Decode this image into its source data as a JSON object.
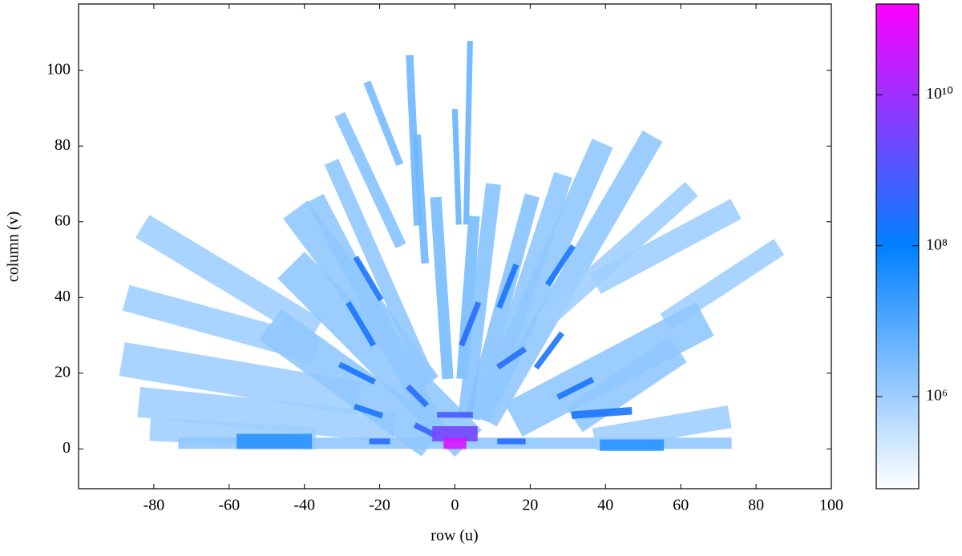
{
  "chart_data": {
    "type": "heatmap",
    "xlabel": "row (u)",
    "ylabel": "column (v)",
    "xlim": [
      -100,
      100
    ],
    "ylim": [
      -10.5,
      117.5
    ],
    "xticks": [
      -80,
      -60,
      -40,
      -20,
      0,
      20,
      40,
      60,
      80,
      100
    ],
    "yticks": [
      0,
      20,
      40,
      60,
      80,
      100
    ],
    "clim": [
      60000,
      160000000000
    ],
    "clog": true,
    "colormap": [
      "#ffffff",
      "#0080ff",
      "#ff00ff"
    ],
    "cticks": [
      {
        "value": 1000000,
        "label": "10⁶"
      },
      {
        "value": 100000000,
        "label": "10⁸"
      },
      {
        "value": 10000000000,
        "label": "10¹⁰"
      }
    ],
    "streaks": [
      {
        "u": [
          -80,
          -40
        ],
        "v": [
          57,
          33
        ],
        "width": 7,
        "value": 1000000
      },
      {
        "u": [
          -84,
          -40
        ],
        "v": [
          39,
          27
        ],
        "width": 7,
        "value": 1000000
      },
      {
        "u": [
          -84,
          -30
        ],
        "v": [
          23,
          14
        ],
        "width": 9,
        "value": 1000000
      },
      {
        "u": [
          -80,
          -20
        ],
        "v": [
          12,
          6
        ],
        "width": 8,
        "value": 1000000
      },
      {
        "u": [
          -78,
          -40
        ],
        "v": [
          5,
          3
        ],
        "width": 6,
        "value": 1000000
      },
      {
        "u": [
          -72,
          72
        ],
        "v": [
          1.5,
          1.5
        ],
        "width": 3,
        "value": 1500000
      },
      {
        "u": [
          -40,
          0
        ],
        "v": [
          45,
          5
        ],
        "width": 10,
        "value": 1500000
      },
      {
        "u": [
          -45,
          -10
        ],
        "v": [
          30,
          5
        ],
        "width": 10,
        "value": 1500000
      },
      {
        "u": [
          -40,
          -10
        ],
        "v": [
          60,
          20
        ],
        "width": 8,
        "value": 1500000
      },
      {
        "u": [
          -36,
          -5
        ],
        "v": [
          64,
          5
        ],
        "width": 5,
        "value": 1500000
      },
      {
        "u": [
          -32,
          -8
        ],
        "v": [
          74,
          20
        ],
        "width": 4,
        "value": 1500000
      },
      {
        "u": [
          -30,
          -15
        ],
        "v": [
          87,
          55
        ],
        "width": 3,
        "value": 2000000
      },
      {
        "u": [
          -23,
          -15
        ],
        "v": [
          96,
          76
        ],
        "width": 2,
        "value": 3000000
      },
      {
        "u": [
          -12,
          -10
        ],
        "v": [
          103,
          60
        ],
        "width": 2,
        "value": 4000000
      },
      {
        "u": [
          -10,
          -8
        ],
        "v": [
          82,
          50
        ],
        "width": 2,
        "value": 4000000
      },
      {
        "u": [
          0,
          1
        ],
        "v": [
          89,
          60
        ],
        "width": 1.5,
        "value": 5000000
      },
      {
        "u": [
          4,
          3
        ],
        "v": [
          107,
          60
        ],
        "width": 1.5,
        "value": 5000000
      },
      {
        "u": [
          -5,
          -2
        ],
        "v": [
          65,
          20
        ],
        "width": 3,
        "value": 3000000
      },
      {
        "u": [
          5,
          2
        ],
        "v": [
          60,
          20
        ],
        "width": 3,
        "value": 3000000
      },
      {
        "u": [
          10,
          3
        ],
        "v": [
          68,
          10
        ],
        "width": 4,
        "value": 2000000
      },
      {
        "u": [
          20,
          5
        ],
        "v": [
          65,
          10
        ],
        "width": 4,
        "value": 2000000
      },
      {
        "u": [
          28,
          8
        ],
        "v": [
          70,
          10
        ],
        "width": 5,
        "value": 1500000
      },
      {
        "u": [
          38,
          10
        ],
        "v": [
          78,
          15
        ],
        "width": 6,
        "value": 1500000
      },
      {
        "u": [
          51,
          10
        ],
        "v": [
          80,
          10
        ],
        "width": 6,
        "value": 1500000
      },
      {
        "u": [
          61,
          25
        ],
        "v": [
          67,
          35
        ],
        "width": 5,
        "value": 1000000
      },
      {
        "u": [
          72,
          40
        ],
        "v": [
          62,
          45
        ],
        "width": 6,
        "value": 1000000
      },
      {
        "u": [
          84,
          58
        ],
        "v": [
          52,
          35
        ],
        "width": 5,
        "value": 1000000
      },
      {
        "u": [
          62,
          20
        ],
        "v": [
          32,
          10
        ],
        "width": 10,
        "value": 1500000
      },
      {
        "u": [
          56,
          35
        ],
        "v": [
          24,
          10
        ],
        "width": 8,
        "value": 1500000
      },
      {
        "u": [
          70,
          40
        ],
        "v": [
          8,
          3
        ],
        "width": 6,
        "value": 1000000
      },
      {
        "u": [
          -56,
          -40
        ],
        "v": [
          2,
          2
        ],
        "width": 4,
        "value": 30000000
      },
      {
        "u": [
          40,
          54
        ],
        "v": [
          1,
          1
        ],
        "width": 3,
        "value": 30000000
      },
      {
        "u": [
          -26,
          -20
        ],
        "v": [
          50,
          40
        ],
        "width": 1.5,
        "value": 200000000
      },
      {
        "u": [
          -28,
          -22
        ],
        "v": [
          38,
          28
        ],
        "width": 1.5,
        "value": 200000000
      },
      {
        "u": [
          -30,
          -22
        ],
        "v": [
          22,
          18
        ],
        "width": 1.5,
        "value": 200000000
      },
      {
        "u": [
          -26,
          -20
        ],
        "v": [
          11,
          9
        ],
        "width": 1.5,
        "value": 200000000
      },
      {
        "u": [
          -22,
          -18
        ],
        "v": [
          2,
          2
        ],
        "width": 1.5,
        "value": 300000000
      },
      {
        "u": [
          -12,
          -8
        ],
        "v": [
          16,
          12
        ],
        "width": 1.5,
        "value": 300000000
      },
      {
        "u": [
          -10,
          -6
        ],
        "v": [
          6,
          4
        ],
        "width": 1.5,
        "value": 500000000
      },
      {
        "u": [
          12,
          16
        ],
        "v": [
          38,
          48
        ],
        "width": 1.5,
        "value": 200000000
      },
      {
        "u": [
          25,
          31
        ],
        "v": [
          44,
          53
        ],
        "width": 1.5,
        "value": 200000000
      },
      {
        "u": [
          12,
          18
        ],
        "v": [
          22,
          26
        ],
        "width": 1.5,
        "value": 300000000
      },
      {
        "u": [
          22,
          28
        ],
        "v": [
          22,
          30
        ],
        "width": 1.5,
        "value": 200000000
      },
      {
        "u": [
          28,
          36
        ],
        "v": [
          14,
          18
        ],
        "width": 1.5,
        "value": 200000000
      },
      {
        "u": [
          32,
          46
        ],
        "v": [
          9,
          10
        ],
        "width": 2,
        "value": 200000000
      },
      {
        "u": [
          12,
          18
        ],
        "v": [
          2,
          2
        ],
        "width": 1.5,
        "value": 300000000
      },
      {
        "u": [
          2,
          6
        ],
        "v": [
          28,
          38
        ],
        "width": 1.5,
        "value": 300000000
      },
      {
        "u": [
          -4,
          4
        ],
        "v": [
          9,
          9
        ],
        "width": 1.5,
        "value": 800000000
      },
      {
        "u": [
          -4,
          4
        ],
        "v": [
          4,
          4
        ],
        "width": 4,
        "value": 3000000000
      },
      {
        "u": [
          -1.5,
          1.5
        ],
        "v": [
          1.5,
          1.5
        ],
        "width": 3,
        "value": 50000000000
      }
    ]
  }
}
